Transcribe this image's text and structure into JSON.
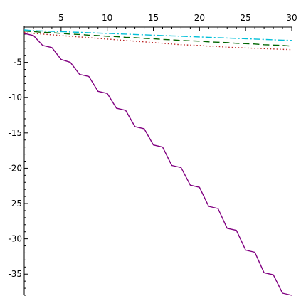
{
  "chart_data": {
    "type": "line",
    "title": "",
    "xlabel": "",
    "ylabel": "",
    "xlim": [
      1,
      30
    ],
    "ylim": [
      -38,
      0
    ],
    "x_ticks": [
      5,
      10,
      15,
      20,
      25,
      30
    ],
    "y_ticks": [
      -5,
      -10,
      -15,
      -20,
      -25,
      -30,
      -35
    ],
    "x_tick_labels": [
      "5",
      "10",
      "15",
      "20",
      "25",
      "30"
    ],
    "y_tick_labels": [
      "-5",
      "-10",
      "-15",
      "-20",
      "-25",
      "-30",
      "-35"
    ],
    "grid": false,
    "x": [
      1,
      2,
      3,
      4,
      5,
      6,
      7,
      8,
      9,
      10,
      11,
      12,
      13,
      14,
      15,
      16,
      17,
      18,
      19,
      20,
      21,
      22,
      23,
      24,
      25,
      26,
      27,
      28,
      29,
      30
    ],
    "series": [
      {
        "color": "#800080",
        "dash": "solid",
        "values": [
          -0.9,
          -1.2,
          -2.6,
          -2.9,
          -4.6,
          -5.0,
          -6.7,
          -7.0,
          -9.1,
          -9.4,
          -11.5,
          -11.8,
          -14.1,
          -14.4,
          -16.7,
          -17.0,
          -19.6,
          -19.9,
          -22.4,
          -22.7,
          -25.4,
          -25.7,
          -28.5,
          -28.8,
          -31.6,
          -31.9,
          -34.8,
          -35.1,
          -37.7,
          -38.0
        ]
      },
      {
        "color": "#bb2222",
        "dash": "dotted",
        "values": [
          -0.75,
          -0.9,
          -1.0,
          -1.1,
          -1.2,
          -1.3,
          -1.4,
          -1.5,
          -1.6,
          -1.7,
          -1.8,
          -1.9,
          -2.0,
          -2.1,
          -2.2,
          -2.3,
          -2.4,
          -2.5,
          -2.55,
          -2.6,
          -2.7,
          -2.75,
          -2.85,
          -2.9,
          -2.95,
          -3.0,
          -3.05,
          -3.1,
          -3.15,
          -3.2
        ]
      },
      {
        "color": "#006400",
        "dash": "dashed",
        "values": [
          -0.55,
          -0.65,
          -0.75,
          -0.8,
          -0.9,
          -1.0,
          -1.05,
          -1.15,
          -1.2,
          -1.3,
          -1.35,
          -1.45,
          -1.5,
          -1.6,
          -1.65,
          -1.75,
          -1.8,
          -1.9,
          -1.95,
          -2.0,
          -2.1,
          -2.15,
          -2.2,
          -2.3,
          -2.35,
          -2.4,
          -2.5,
          -2.55,
          -2.6,
          -2.7
        ]
      },
      {
        "color": "#00bfd8",
        "dash": "dashdot",
        "values": [
          -0.4,
          -0.5,
          -0.55,
          -0.6,
          -0.65,
          -0.7,
          -0.75,
          -0.8,
          -0.85,
          -0.9,
          -0.95,
          -1.0,
          -1.05,
          -1.1,
          -1.15,
          -1.2,
          -1.25,
          -1.3,
          -1.35,
          -1.4,
          -1.45,
          -1.5,
          -1.55,
          -1.6,
          -1.65,
          -1.7,
          -1.75,
          -1.8,
          -1.85,
          -1.9
        ]
      }
    ]
  }
}
